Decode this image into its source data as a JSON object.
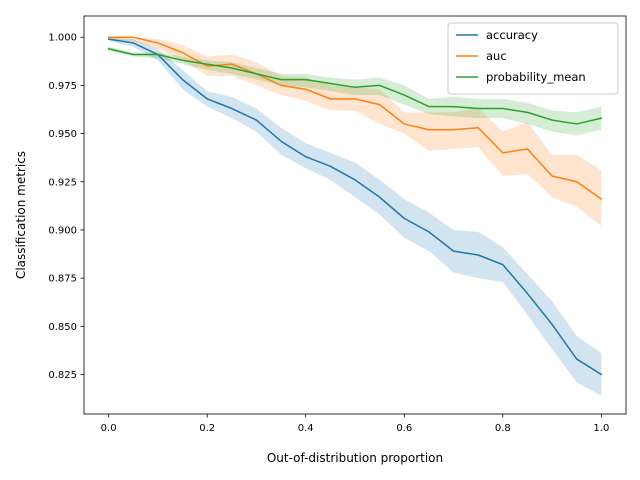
{
  "chart_data": {
    "type": "line",
    "title": "",
    "xlabel": "Out-of-distribution proportion",
    "ylabel": "Classification metrics",
    "xlim": [
      -0.05,
      1.05
    ],
    "ylim": [
      0.8045,
      1.011
    ],
    "xticks": [
      0.0,
      0.2,
      0.4,
      0.6,
      0.8,
      1.0
    ],
    "xtick_labels": [
      "0.0",
      "0.2",
      "0.4",
      "0.6",
      "0.8",
      "1.0"
    ],
    "yticks": [
      0.825,
      0.85,
      0.875,
      0.9,
      0.925,
      0.95,
      0.975,
      1.0
    ],
    "ytick_labels": [
      "0.825",
      "0.850",
      "0.875",
      "0.900",
      "0.925",
      "0.950",
      "0.975",
      "1.000"
    ],
    "grid": false,
    "legend_position": "upper right",
    "x": [
      0.0,
      0.05,
      0.1,
      0.15,
      0.2,
      0.25,
      0.3,
      0.35,
      0.4,
      0.45,
      0.5,
      0.55,
      0.6,
      0.65,
      0.7,
      0.75,
      0.8,
      0.85,
      0.9,
      0.95,
      1.0
    ],
    "series": [
      {
        "name": "accuracy",
        "color": "#1f77b4",
        "values": [
          0.999,
          0.997,
          0.991,
          0.978,
          0.968,
          0.963,
          0.957,
          0.946,
          0.938,
          0.933,
          0.926,
          0.917,
          0.906,
          0.899,
          0.889,
          0.887,
          0.882,
          0.867,
          0.851,
          0.833,
          0.825
        ],
        "lower": [
          0.998,
          0.995,
          0.988,
          0.973,
          0.964,
          0.958,
          0.951,
          0.939,
          0.932,
          0.926,
          0.917,
          0.908,
          0.896,
          0.889,
          0.878,
          0.875,
          0.873,
          0.856,
          0.838,
          0.821,
          0.814
        ],
        "upper": [
          1.0,
          0.999,
          0.994,
          0.983,
          0.972,
          0.969,
          0.963,
          0.953,
          0.945,
          0.94,
          0.935,
          0.926,
          0.916,
          0.909,
          0.9,
          0.899,
          0.891,
          0.877,
          0.863,
          0.845,
          0.836
        ]
      },
      {
        "name": "auc",
        "color": "#ff7f0e",
        "values": [
          1.0,
          1.0,
          0.997,
          0.992,
          0.985,
          0.986,
          0.981,
          0.975,
          0.973,
          0.968,
          0.968,
          0.965,
          0.955,
          0.952,
          0.952,
          0.953,
          0.94,
          0.942,
          0.928,
          0.925,
          0.916
        ],
        "lower": [
          0.999,
          0.998,
          0.994,
          0.988,
          0.98,
          0.98,
          0.975,
          0.97,
          0.967,
          0.962,
          0.962,
          0.955,
          0.95,
          0.941,
          0.942,
          0.943,
          0.928,
          0.929,
          0.917,
          0.912,
          0.902
        ],
        "upper": [
          1.0,
          1.0,
          0.999,
          0.996,
          0.99,
          0.991,
          0.987,
          0.98,
          0.979,
          0.975,
          0.974,
          0.973,
          0.961,
          0.961,
          0.961,
          0.963,
          0.951,
          0.956,
          0.939,
          0.939,
          0.931
        ]
      },
      {
        "name": "probability_mean",
        "color": "#2ca02c",
        "values": [
          0.994,
          0.991,
          0.991,
          0.988,
          0.986,
          0.984,
          0.981,
          0.978,
          0.978,
          0.976,
          0.974,
          0.975,
          0.97,
          0.964,
          0.964,
          0.963,
          0.963,
          0.961,
          0.957,
          0.955,
          0.958
        ],
        "lower": [
          0.993,
          0.99,
          0.989,
          0.986,
          0.983,
          0.981,
          0.978,
          0.975,
          0.974,
          0.972,
          0.97,
          0.97,
          0.965,
          0.96,
          0.959,
          0.958,
          0.958,
          0.955,
          0.951,
          0.949,
          0.952
        ],
        "upper": [
          0.995,
          0.992,
          0.992,
          0.99,
          0.988,
          0.987,
          0.984,
          0.981,
          0.981,
          0.979,
          0.978,
          0.979,
          0.975,
          0.968,
          0.969,
          0.968,
          0.968,
          0.966,
          0.962,
          0.961,
          0.964
        ]
      }
    ]
  }
}
